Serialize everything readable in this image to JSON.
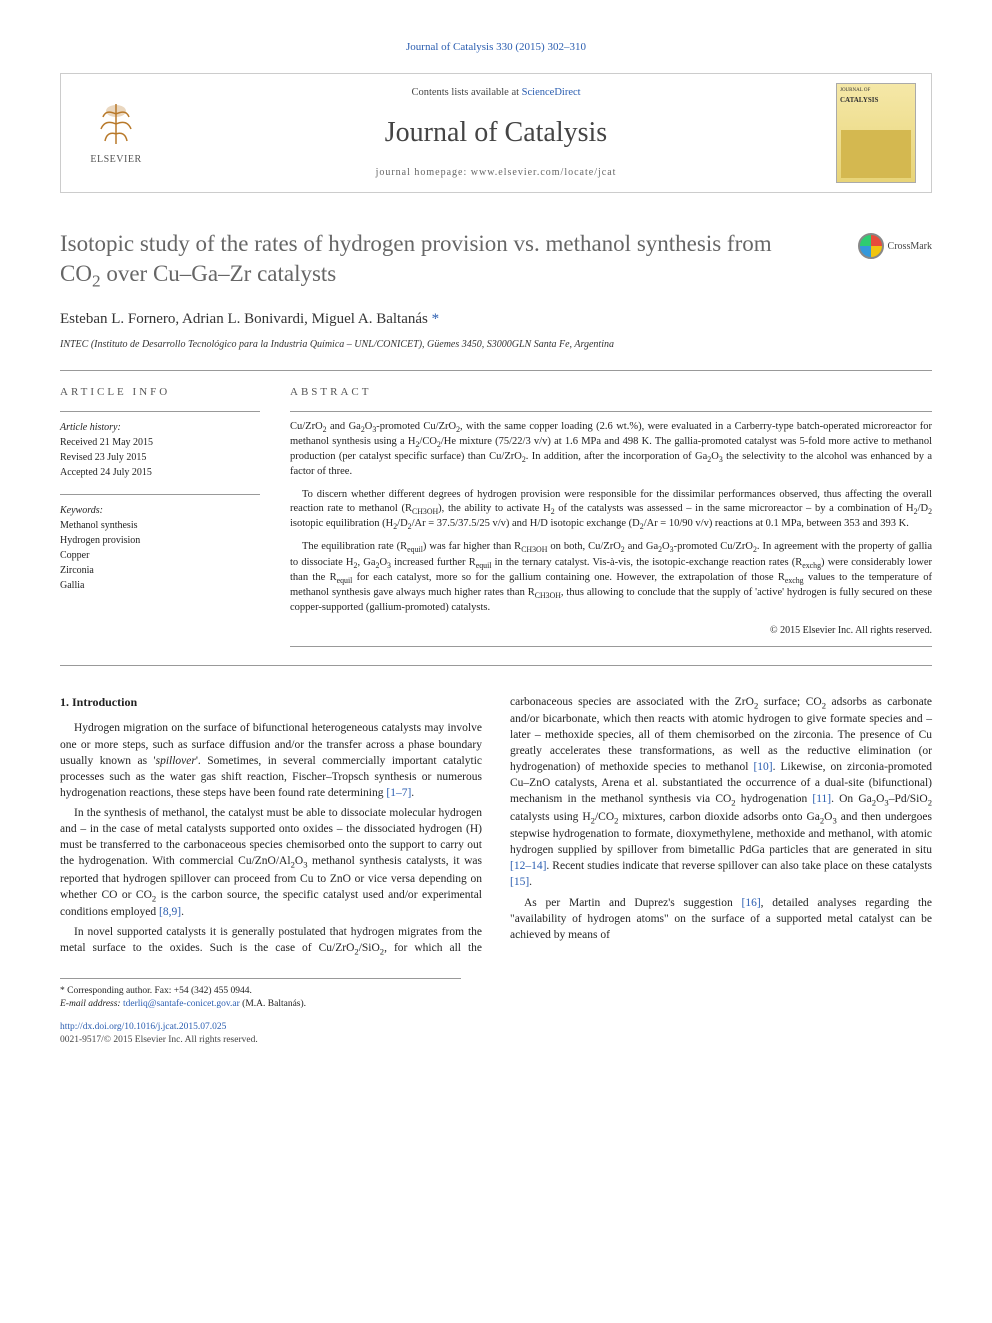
{
  "top_citation": "Journal of Catalysis 330 (2015) 302–310",
  "header": {
    "contents_line_prefix": "Contents lists available at ",
    "contents_link": "ScienceDirect",
    "journal_name": "Journal of Catalysis",
    "homepage_prefix": "journal homepage: ",
    "homepage_url": "www.elsevier.com/locate/jcat",
    "publisher_label": "ELSEVIER",
    "cover_top": "JOURNAL OF",
    "cover_title": "CATALYSIS"
  },
  "crossmark_label": "CrossMark",
  "title_html": "Isotopic study of the rates of hydrogen provision vs. methanol synthesis from CO<sub>2</sub> over Cu–Ga–Zr catalysts",
  "authors_html": "Esteban L. Fornero, Adrian L. Bonivardi, Miguel A. Baltanás <span class='ast'>*</span>",
  "affiliation": "INTEC (Instituto de Desarrollo Tecnológico para la Industria Química – UNL/CONICET), Güemes 3450, S3000GLN Santa Fe, Argentina",
  "info": {
    "head": "ARTICLE INFO",
    "history_label": "Article history:",
    "received": "Received 21 May 2015",
    "revised": "Revised 23 July 2015",
    "accepted": "Accepted 24 July 2015",
    "keywords_label": "Keywords:",
    "keywords": [
      "Methanol synthesis",
      "Hydrogen provision",
      "Copper",
      "Zirconia",
      "Gallia"
    ]
  },
  "abstract": {
    "head": "ABSTRACT",
    "p1_html": "Cu/ZrO<sub>2</sub> and Ga<sub>2</sub>O<sub>3</sub>-promoted Cu/ZrO<sub>2</sub>, with the same copper loading (2.6 wt.%), were evaluated in a Carberry-type batch-operated microreactor for methanol synthesis using a H<sub>2</sub>/CO<sub>2</sub>/He mixture (75/22/3 v/v) at 1.6 MPa and 498 K. The gallia-promoted catalyst was 5-fold more active to methanol production (per catalyst specific surface) than Cu/ZrO<sub>2</sub>. In addition, after the incorporation of Ga<sub>2</sub>O<sub>3</sub> the selectivity to the alcohol was enhanced by a factor of three.",
    "p2_html": "To discern whether different degrees of hydrogen provision were responsible for the dissimilar performances observed, thus affecting the overall reaction rate to methanol (R<sub>CH3OH</sub>), the ability to activate H<sub>2</sub> of the catalysts was assessed – in the same microreactor – by a combination of H<sub>2</sub>/D<sub>2</sub> isotopic equilibration (H<sub>2</sub>/D<sub>2</sub>/Ar = 37.5/37.5/25 v/v) and H/D isotopic exchange (D<sub>2</sub>/Ar = 10/90 v/v) reactions at 0.1 MPa, between 353 and 393 K.",
    "p3_html": "The equilibration rate (R<sub>equil</sub>) was far higher than R<sub>CH3OH</sub> on both, Cu/ZrO<sub>2</sub> and Ga<sub>2</sub>O<sub>3</sub>-promoted Cu/ZrO<sub>2</sub>. In agreement with the property of gallia to dissociate H<sub>2</sub>, Ga<sub>2</sub>O<sub>3</sub> increased further R<sub>equil</sub> in the ternary catalyst. Vis-à-vis, the isotopic-exchange reaction rates (R<sub>exchg</sub>) were considerably lower than the R<sub>equil</sub> for each catalyst, more so for the gallium containing one. However, the extrapolation of those R<sub>exchg</sub> values to the temperature of methanol synthesis gave always much higher rates than R<sub>CH3OH</sub>, thus allowing to conclude that the supply of 'active' hydrogen is fully secured on these copper-supported (gallium-promoted) catalysts.",
    "copyright": "© 2015 Elsevier Inc. All rights reserved."
  },
  "body": {
    "section_heading": "1. Introduction",
    "p1_html": "Hydrogen migration on the surface of bifunctional heterogeneous catalysts may involve one or more steps, such as surface diffusion and/or the transfer across a phase boundary usually known as '<i>spillover</i>'. Sometimes, in several commercially important catalytic processes such as the water gas shift reaction, Fischer–Tropsch synthesis or numerous hydrogenation reactions, these steps have been found rate determining <span class='cite'>[1–7]</span>.",
    "p2_html": "In the synthesis of methanol, the catalyst must be able to dissociate molecular hydrogen and – in the case of metal catalysts supported onto oxides – the dissociated hydrogen (H) must be transferred to the carbonaceous species chemisorbed onto the support to carry out the hydrogenation. With commercial Cu/ZnO/Al<sub>2</sub>O<sub>3</sub> methanol synthesis catalysts, it was reported that hydrogen spillover can proceed from Cu to ZnO or vice versa depending on whether CO or CO<sub>2</sub> is the carbon source, the specific catalyst used and/or experimental conditions employed <span class='cite'>[8,9]</span>.",
    "p3_html": "In novel supported catalysts it is generally postulated that hydrogen migrates from the metal surface to the oxides. Such is the case of Cu/ZrO<sub>2</sub>/SiO<sub>2</sub>, for which all the carbonaceous species are associated with the ZrO<sub>2</sub> surface; CO<sub>2</sub> adsorbs as carbonate and/or bicarbonate, which then reacts with atomic hydrogen to give formate species and – later – methoxide species, all of them chemisorbed on the zirconia. The presence of Cu greatly accelerates these transformations, as well as the reductive elimination (or hydrogenation) of methoxide species to methanol <span class='cite'>[10]</span>. Likewise, on zirconia-promoted Cu–ZnO catalysts, Arena et al. substantiated the occurrence of a dual-site (bifunctional) mechanism in the methanol synthesis via CO<sub>2</sub> hydrogenation <span class='cite'>[11]</span>. On Ga<sub>2</sub>O<sub>3</sub>–Pd/SiO<sub>2</sub> catalysts using H<sub>2</sub>/CO<sub>2</sub> mixtures, carbon dioxide adsorbs onto Ga<sub>2</sub>O<sub>3</sub> and then undergoes stepwise hydrogenation to formate, dioxymethylene, methoxide and methanol, with atomic hydrogen supplied by spillover from bimetallic PdGa particles that are generated in situ <span class='cite'>[12–14]</span>. Recent studies indicate that reverse spillover can also take place on these catalysts <span class='cite'>[15]</span>.",
    "p4_html": "As per Martin and Duprez's suggestion <span class='cite'>[16]</span>, detailed analyses regarding the \"availability of hydrogen atoms\" on the surface of a supported metal catalyst can be achieved by means of"
  },
  "footnote": {
    "corr_label": "* Corresponding author. Fax: +54 (342) 455 0944.",
    "email_label": "E-mail address: ",
    "email": "tderliq@santafe-conicet.gov.ar",
    "email_suffix": " (M.A. Baltanás)."
  },
  "bottom": {
    "doi": "http://dx.doi.org/10.1016/j.jcat.2015.07.025",
    "issn_line": "0021-9517/© 2015 Elsevier Inc. All rights reserved."
  },
  "colors": {
    "link": "#2a5db0",
    "text": "#222222",
    "muted": "#666666",
    "border": "#999999",
    "cover_bg_top": "#f5e8a8",
    "cover_bg_bottom": "#e8d478"
  }
}
